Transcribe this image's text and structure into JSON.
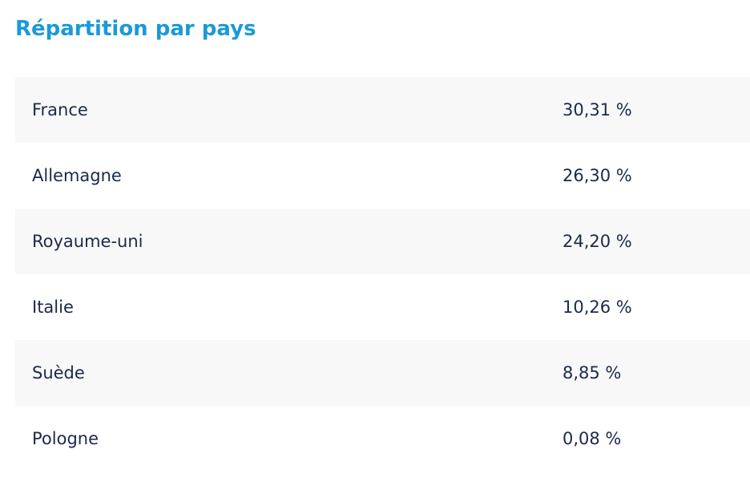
{
  "header": {
    "title": "Répartition par pays"
  },
  "table": {
    "rows": [
      [
        "France",
        "30,31 %"
      ],
      [
        "Allemagne",
        "26,30 %"
      ],
      [
        "Royaume-uni",
        "24,20 %"
      ],
      [
        "Italie",
        "10,26 %"
      ],
      [
        "Suède",
        "8,85 %"
      ],
      [
        "Pologne",
        "0,08 %"
      ]
    ]
  }
}
